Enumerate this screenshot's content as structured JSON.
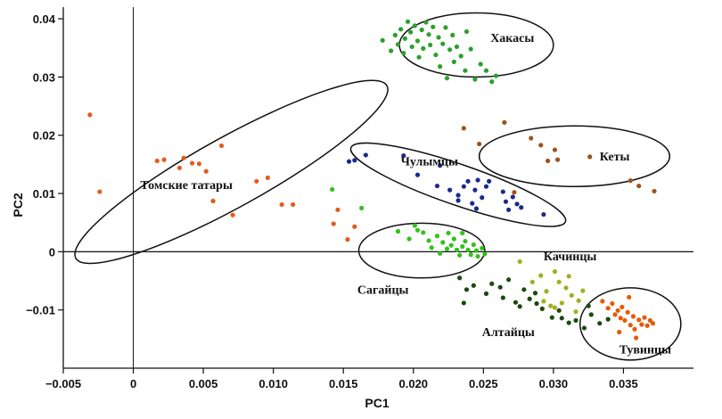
{
  "chart_data": {
    "type": "scatter",
    "xlabel": "PC1",
    "ylabel": "PC2",
    "xlim": [
      -0.005,
      0.04
    ],
    "ylim": [
      -0.02,
      0.042
    ],
    "x_ticks": [
      -0.005,
      0,
      0.005,
      0.01,
      0.015,
      0.02,
      0.025,
      0.03,
      0.035
    ],
    "x_tick_labels": [
      "−0.005",
      "0",
      "0.005",
      "0.010",
      "0.015",
      "0.020",
      "0.025",
      "0.030",
      "0.035"
    ],
    "y_ticks": [
      -0.01,
      0,
      0.01,
      0.02,
      0.03,
      0.04
    ],
    "y_tick_labels": [
      "−0.01",
      "0",
      "0.01",
      "0.02",
      "0.03",
      "0.04"
    ],
    "reference_lines": {
      "x": 0,
      "y": 0
    },
    "grid": false,
    "legend": "none",
    "series": [
      {
        "name": "Хакасы",
        "color": "#2ca02c",
        "label_pos": [
          0.0255,
          0.036
        ],
        "ellipse": {
          "cx": 0.0245,
          "cy": 0.0355,
          "rx": 0.0055,
          "ry": 0.0055
        },
        "points": [
          [
            0.0178,
            0.0363
          ],
          [
            0.0184,
            0.0345
          ],
          [
            0.0187,
            0.0372
          ],
          [
            0.0189,
            0.0356
          ],
          [
            0.0191,
            0.0382
          ],
          [
            0.0193,
            0.0341
          ],
          [
            0.0194,
            0.0366
          ],
          [
            0.0196,
            0.0395
          ],
          [
            0.0198,
            0.0377
          ],
          [
            0.0199,
            0.0352
          ],
          [
            0.0201,
            0.0388
          ],
          [
            0.0203,
            0.0362
          ],
          [
            0.0204,
            0.0334
          ],
          [
            0.0206,
            0.0381
          ],
          [
            0.0207,
            0.0349
          ],
          [
            0.0209,
            0.0394
          ],
          [
            0.0211,
            0.0373
          ],
          [
            0.0212,
            0.0355
          ],
          [
            0.0214,
            0.0386
          ],
          [
            0.0216,
            0.0338
          ],
          [
            0.0218,
            0.0368
          ],
          [
            0.0219,
            0.0318
          ],
          [
            0.0221,
            0.0357
          ],
          [
            0.0223,
            0.0385
          ],
          [
            0.0224,
            0.0298
          ],
          [
            0.0226,
            0.0347
          ],
          [
            0.0228,
            0.0372
          ],
          [
            0.0229,
            0.0326
          ],
          [
            0.0231,
            0.0352
          ],
          [
            0.0234,
            0.0336
          ],
          [
            0.0237,
            0.0311
          ],
          [
            0.0241,
            0.0348
          ],
          [
            0.0244,
            0.0296
          ],
          [
            0.0248,
            0.0322
          ],
          [
            0.0252,
            0.0311
          ],
          [
            0.0256,
            0.0292
          ],
          [
            0.0259,
            0.0302
          ],
          [
            0.0238,
            0.0378
          ]
        ]
      },
      {
        "name": "Кеты",
        "color": "#a0521c",
        "label_pos": [
          0.0333,
          0.0157
        ],
        "ellipse": {
          "cx": 0.0315,
          "cy": 0.0164,
          "rx": 0.0068,
          "ry": 0.0052
        },
        "points": [
          [
            0.0236,
            0.0212
          ],
          [
            0.0247,
            0.0185
          ],
          [
            0.0265,
            0.0222
          ],
          [
            0.0284,
            0.0195
          ],
          [
            0.0291,
            0.0183
          ],
          [
            0.0296,
            0.0156
          ],
          [
            0.0301,
            0.0175
          ],
          [
            0.0303,
            0.0158
          ],
          [
            0.0326,
            0.0163
          ],
          [
            0.0355,
            0.0122
          ],
          [
            0.0361,
            0.0113
          ],
          [
            0.0372,
            0.0104
          ],
          [
            0.0272,
            0.0102
          ]
        ]
      },
      {
        "name": "Чулымцы",
        "color": "#1a2a8c",
        "label_pos": [
          0.0191,
          0.0148
        ],
        "ellipse": {
          "cx": 0.0232,
          "cy": 0.0115,
          "rx": 0.0081,
          "ry": 0.0035,
          "rot": 19
        },
        "points": [
          [
            0.0154,
            0.0155
          ],
          [
            0.0158,
            0.0157
          ],
          [
            0.0166,
            0.0166
          ],
          [
            0.0193,
            0.0165
          ],
          [
            0.0203,
            0.0132
          ],
          [
            0.0217,
            0.0113
          ],
          [
            0.0219,
            0.0148
          ],
          [
            0.0226,
            0.0106
          ],
          [
            0.0232,
            0.0097
          ],
          [
            0.0236,
            0.0112
          ],
          [
            0.0239,
            0.0121
          ],
          [
            0.0242,
            0.0083
          ],
          [
            0.0244,
            0.0106
          ],
          [
            0.0246,
            0.0123
          ],
          [
            0.0249,
            0.0093
          ],
          [
            0.0252,
            0.0112
          ],
          [
            0.0254,
            0.0121
          ],
          [
            0.0264,
            0.0103
          ],
          [
            0.0266,
            0.0086
          ],
          [
            0.0268,
            0.0072
          ],
          [
            0.0271,
            0.0094
          ],
          [
            0.0274,
            0.0082
          ],
          [
            0.0277,
            0.0076
          ],
          [
            0.0293,
            0.0064
          ],
          [
            0.0245,
            0.0074
          ],
          [
            0.0232,
            0.0088
          ]
        ]
      },
      {
        "name": "Томские татары",
        "color": "#e65a1a",
        "label_pos": [
          0.0005,
          0.0108
        ],
        "ellipse": {
          "cx": 0.007,
          "cy": 0.0137,
          "rx": 0.0127,
          "ry": 0.006,
          "rot": -29
        },
        "points": [
          [
            -0.0031,
            0.0235
          ],
          [
            -0.0024,
            0.0103
          ],
          [
            0.0017,
            0.0156
          ],
          [
            0.0022,
            0.0158
          ],
          [
            0.0033,
            0.0144
          ],
          [
            0.0036,
            0.0161
          ],
          [
            0.0042,
            0.0152
          ],
          [
            0.0047,
            0.0151
          ],
          [
            0.0052,
            0.0138
          ],
          [
            0.0057,
            0.0087
          ],
          [
            0.0063,
            0.0182
          ],
          [
            0.0071,
            0.0063
          ],
          [
            0.0088,
            0.0121
          ],
          [
            0.0096,
            0.0127
          ],
          [
            0.0106,
            0.0081
          ],
          [
            0.0114,
            0.0081
          ],
          [
            0.0143,
            0.0048
          ],
          [
            0.0146,
            0.0072
          ],
          [
            0.0153,
            0.0021
          ],
          [
            0.0158,
            0.0043
          ]
        ]
      },
      {
        "name": "Сагайцы",
        "color": "#33c11a",
        "label_pos": [
          0.016,
          -0.0072
        ],
        "ellipse": {
          "cx": 0.0206,
          "cy": 0.0002,
          "rx": 0.0045,
          "ry": 0.0047
        },
        "points": [
          [
            0.0142,
            0.0107
          ],
          [
            0.0163,
            0.0075
          ],
          [
            0.0189,
            0.0035
          ],
          [
            0.0201,
            0.0045
          ],
          [
            0.0207,
            0.0033
          ],
          [
            0.0211,
            0.0019
          ],
          [
            0.0217,
            0.0027
          ],
          [
            0.0221,
            0.0016
          ],
          [
            0.0224,
            0.0005
          ],
          [
            0.0227,
            0.0011
          ],
          [
            0.0229,
            0.0022
          ],
          [
            0.0231,
            0.0003
          ],
          [
            0.0233,
            -0.0006
          ],
          [
            0.0235,
            0.0009
          ],
          [
            0.0237,
            0.0018
          ],
          [
            0.0239,
            0.0003
          ],
          [
            0.0241,
            -0.0005
          ],
          [
            0.0243,
            0.0012
          ],
          [
            0.0245,
            0.0002
          ],
          [
            0.0246,
            -0.0008
          ],
          [
            0.0249,
            0.0006
          ],
          [
            0.0251,
            -0.0004
          ],
          [
            0.0219,
            -0.0003
          ],
          [
            0.0225,
            0.0032
          ],
          [
            0.0235,
            0.0032
          ],
          [
            0.0203,
            0.0037
          ],
          [
            0.0213,
            0.0007
          ],
          [
            0.0197,
            0.0022
          ]
        ]
      },
      {
        "name": "Качинцы",
        "color": "#a0b01e",
        "label_pos": [
          0.0293,
          -0.0015
        ],
        "points": [
          [
            0.0276,
            -0.0017
          ],
          [
            0.0285,
            -0.0052
          ],
          [
            0.0291,
            -0.0041
          ],
          [
            0.0295,
            -0.0068
          ],
          [
            0.0298,
            -0.0093
          ],
          [
            0.0301,
            -0.0034
          ],
          [
            0.0304,
            -0.0052
          ],
          [
            0.0306,
            -0.0088
          ],
          [
            0.0309,
            -0.0062
          ],
          [
            0.0311,
            -0.0042
          ],
          [
            0.0313,
            -0.0075
          ],
          [
            0.0316,
            -0.0103
          ],
          [
            0.0318,
            -0.0084
          ],
          [
            0.0321,
            -0.0067
          ],
          [
            0.0293,
            -0.0085
          ],
          [
            0.0301,
            -0.0096
          ]
        ]
      },
      {
        "name": "Алтайцы",
        "color": "#1a4a0e",
        "label_pos": [
          0.0249,
          -0.0145
        ],
        "points": [
          [
            0.0233,
            -0.0045
          ],
          [
            0.0236,
            -0.0088
          ],
          [
            0.0238,
            -0.0065
          ],
          [
            0.0243,
            -0.0058
          ],
          [
            0.0252,
            -0.0072
          ],
          [
            0.0256,
            -0.0055
          ],
          [
            0.0262,
            -0.0061
          ],
          [
            0.0264,
            -0.0079
          ],
          [
            0.0268,
            -0.0048
          ],
          [
            0.0273,
            -0.0087
          ],
          [
            0.0276,
            -0.0094
          ],
          [
            0.0279,
            -0.0065
          ],
          [
            0.0283,
            -0.0081
          ],
          [
            0.0287,
            -0.0071
          ],
          [
            0.0292,
            -0.0098
          ],
          [
            0.0299,
            -0.0113
          ],
          [
            0.0304,
            -0.0101
          ],
          [
            0.0306,
            -0.0114
          ],
          [
            0.0311,
            -0.0122
          ],
          [
            0.0316,
            -0.0118
          ],
          [
            0.0322,
            -0.0131
          ],
          [
            0.0327,
            -0.0108
          ],
          [
            0.0333,
            -0.0123
          ],
          [
            0.0339,
            -0.0116
          ],
          [
            0.0325,
            -0.0093
          ],
          [
            0.0288,
            -0.0089
          ]
        ]
      },
      {
        "name": "Тувинцы",
        "color": "#e65a06",
        "label_pos": [
          0.0347,
          -0.0175
        ],
        "ellipse": {
          "cx": 0.0355,
          "cy": -0.0124,
          "rx": 0.0036,
          "ry": 0.0062
        },
        "points": [
          [
            0.0335,
            -0.0085
          ],
          [
            0.0339,
            -0.0097
          ],
          [
            0.0342,
            -0.0089
          ],
          [
            0.0344,
            -0.0108
          ],
          [
            0.0346,
            -0.0101
          ],
          [
            0.0348,
            -0.0114
          ],
          [
            0.0349,
            -0.0095
          ],
          [
            0.0351,
            -0.0118
          ],
          [
            0.0353,
            -0.0104
          ],
          [
            0.0355,
            -0.0126
          ],
          [
            0.0357,
            -0.0111
          ],
          [
            0.0358,
            -0.0133
          ],
          [
            0.0361,
            -0.0117
          ],
          [
            0.0363,
            -0.0125
          ],
          [
            0.0365,
            -0.0113
          ],
          [
            0.0367,
            -0.0127
          ],
          [
            0.0369,
            -0.0118
          ],
          [
            0.0354,
            -0.0078
          ],
          [
            0.0371,
            -0.0123
          ],
          [
            0.0359,
            -0.0148
          ],
          [
            0.0347,
            -0.0138
          ]
        ]
      }
    ]
  }
}
